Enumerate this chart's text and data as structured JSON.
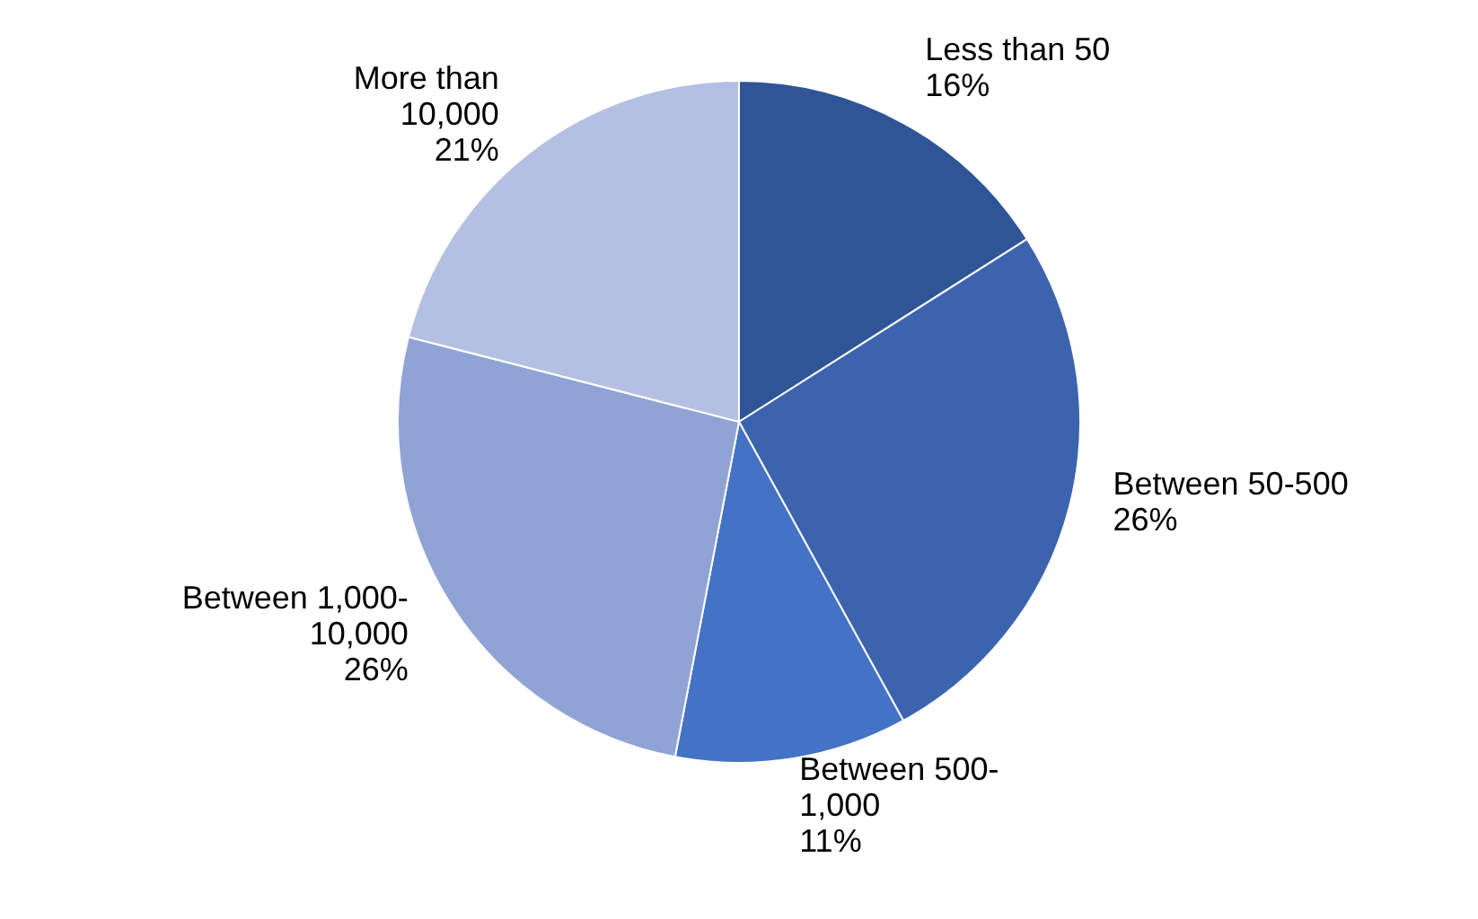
{
  "chart_data": {
    "type": "pie",
    "categories": [
      "Less than 50",
      "Between 50-500",
      "Between 500-1,000",
      "Between 1,000-10,000",
      "More than 10,000"
    ],
    "values": [
      16,
      26,
      11,
      26,
      21
    ],
    "value_labels": [
      "16%",
      "26%",
      "11%",
      "26%",
      "21%"
    ],
    "colors": [
      "#2f5597",
      "#3c64ae",
      "#4472c4",
      "#8fa3d4",
      "#b4c0e2"
    ]
  }
}
